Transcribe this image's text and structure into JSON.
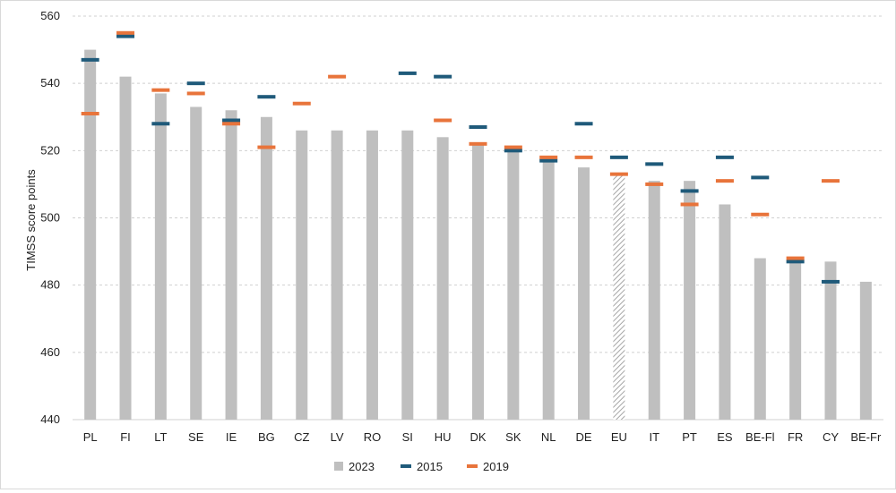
{
  "chart_data": {
    "type": "bar",
    "title": "",
    "xlabel": "",
    "ylabel": "TIMSS score points",
    "ylim": [
      440,
      560
    ],
    "yticks": [
      440,
      460,
      480,
      500,
      520,
      540,
      560
    ],
    "grid": "horizontal dashed",
    "legend_position": "bottom",
    "categories": [
      "PL",
      "FI",
      "LT",
      "SE",
      "IE",
      "BG",
      "CZ",
      "LV",
      "RO",
      "SI",
      "HU",
      "DK",
      "SK",
      "NL",
      "DE",
      "EU",
      "IT",
      "PT",
      "ES",
      "BE-Fl",
      "FR",
      "CY",
      "BE-Fr"
    ],
    "series": [
      {
        "name": "2023",
        "kind": "bar",
        "color": "#bfbfbf",
        "values": [
          550,
          542,
          537,
          533,
          532,
          530,
          526,
          526,
          526,
          526,
          524,
          522,
          521,
          518,
          515,
          513,
          511,
          511,
          504,
          488,
          488,
          487,
          481
        ]
      },
      {
        "name": "2015",
        "kind": "marker",
        "color": "#1f5a7a",
        "values": [
          547,
          554,
          528,
          540,
          529,
          536,
          null,
          null,
          null,
          543,
          542,
          527,
          520,
          517,
          528,
          518,
          516,
          508,
          518,
          512,
          487,
          481,
          null
        ]
      },
      {
        "name": "2019",
        "kind": "marker",
        "color": "#e8743b",
        "values": [
          531,
          555,
          538,
          537,
          528,
          521,
          534,
          542,
          null,
          null,
          529,
          522,
          521,
          518,
          518,
          513,
          510,
          504,
          511,
          501,
          488,
          511,
          null
        ]
      }
    ],
    "hatched_category": "EU"
  }
}
